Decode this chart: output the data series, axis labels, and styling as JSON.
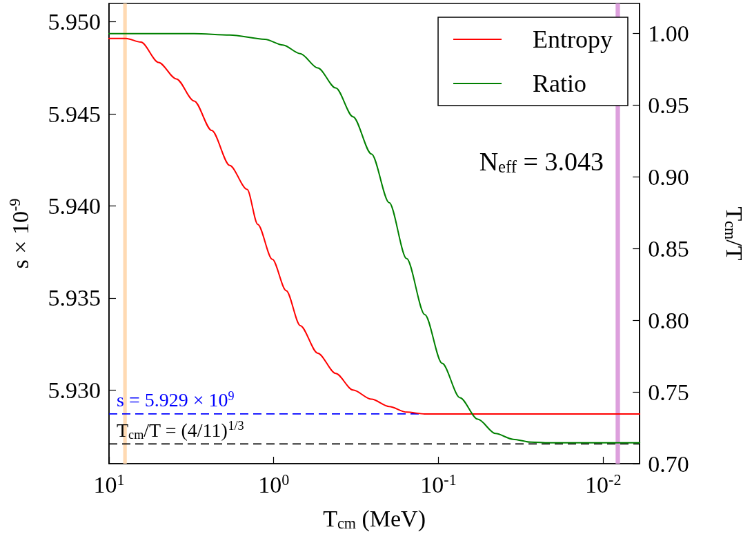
{
  "chart_data": {
    "type": "line",
    "xlabel": "T$_{cm}$ (MeV)",
    "ylabel": "s × 10$^{-9}$",
    "y2label": "T$_{cm}$/T",
    "log": "x",
    "xlim": [
      10,
      0.006
    ],
    "xticks": [
      {
        "value": 10,
        "label": "10$^{1}$"
      },
      {
        "value": 1,
        "label": "10$^{0}$"
      },
      {
        "value": 0.1,
        "label": "10$^{-1}$"
      },
      {
        "value": 0.01,
        "label": "10$^{-2}$"
      }
    ],
    "ylim": [
      5.926,
      5.951
    ],
    "yticks": [
      {
        "value": 5.93,
        "label": "5.930"
      },
      5.935,
      {
        "value": 5.94,
        "label": "5.940"
      },
      5.945,
      {
        "value": 5.95,
        "label": "5.950"
      }
    ],
    "y2lim": [
      0.7,
      1.021
    ],
    "y2ticks": [
      {
        "value": 0.7,
        "label": "0.70"
      },
      0.75,
      {
        "value": 0.8,
        "label": "0.80"
      },
      0.85,
      {
        "value": 0.9,
        "label": "0.90"
      },
      0.95,
      {
        "value": 1,
        "label": "1.00"
      }
    ],
    "series": [
      {
        "name": "Entropy",
        "color": "#ff0000",
        "x": [
          10,
          7.89,
          6.4,
          5,
          3.9,
          3.04,
          2.38,
          1.85,
          1.45,
          1.25,
          1.02,
          0.84,
          0.69,
          0.54,
          0.42,
          0.33,
          0.255,
          0.199,
          0.156,
          0.121,
          0.095,
          0.074,
          0.006
        ],
        "values": [
          5.9491,
          5.9491,
          5.9489,
          5.9478,
          5.9469,
          5.9457,
          5.9441,
          5.9422,
          5.9409,
          5.939,
          5.9371,
          5.9354,
          5.9335,
          5.932,
          5.9309,
          5.93,
          5.9295,
          5.9291,
          5.9288,
          5.9287,
          5.9287,
          5.9287,
          5.9287
        ]
      },
      {
        "name": "Ratio",
        "color": "#008000",
        "axis": "y2",
        "x": [
          10,
          3.04,
          1.85,
          1.13,
          0.88,
          0.69,
          0.54,
          0.42,
          0.33,
          0.255,
          0.199,
          0.156,
          0.121,
          0.095,
          0.074,
          0.0577,
          0.045,
          0.0352,
          0.0274,
          0.0214,
          0.006
        ],
        "values": [
          1,
          1,
          0.999,
          0.996,
          0.992,
          0.986,
          0.976,
          0.962,
          0.942,
          0.916,
          0.882,
          0.843,
          0.804,
          0.77,
          0.746,
          0.731,
          0.721,
          0.717,
          0.715,
          0.7145,
          0.7145
        ]
      }
    ],
    "ref_lines": [
      {
        "axis": "y",
        "value": 5.9287,
        "label": "s = 5.929 × 10$^{9}$",
        "color": "#0000ff",
        "line_style": "dashed"
      },
      {
        "axis": "y2",
        "value": 0.7138,
        "label": "T$_{cm}$/T = (4/11)$^{1/3}$",
        "color": "#000000",
        "line_style": "dashed"
      }
    ],
    "bands": [
      {
        "axis": "x",
        "from": 8.2,
        "to": 7.8,
        "color": "#ffdab3"
      },
      {
        "axis": "x",
        "from": 0.0084,
        "to": 0.0079,
        "color": "#dda0dd"
      }
    ],
    "annotations": [
      "N$_{eff}$ = 3.043"
    ],
    "legend": "top right",
    "grid": false,
    "marker": "none",
    "line_style": "solid"
  }
}
